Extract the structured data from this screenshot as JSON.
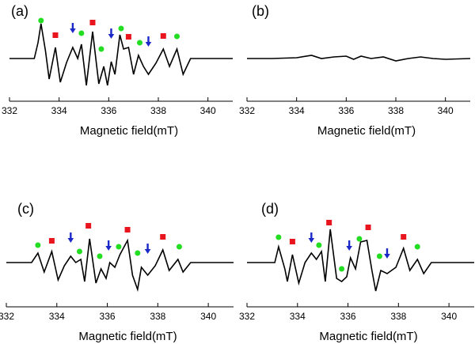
{
  "chart_data": [
    {
      "type": "line",
      "panel_label": "(a)",
      "xlabel": "Magnetic field(mT)",
      "color": "#000000",
      "xlim": [
        332,
        341
      ],
      "xticks": [
        332,
        334,
        336,
        338,
        340
      ],
      "ylim": [
        -54,
        60
      ],
      "x": [
        332.0,
        333.0,
        333.15,
        333.27,
        333.45,
        333.6,
        333.85,
        334.05,
        334.3,
        334.55,
        334.75,
        334.9,
        335.1,
        335.35,
        335.6,
        335.8,
        335.95,
        336.1,
        336.25,
        336.45,
        336.6,
        336.8,
        337.0,
        337.2,
        337.4,
        337.6,
        337.9,
        338.2,
        338.45,
        338.75,
        339.0,
        339.3,
        341.0
      ],
      "values": [
        0,
        0,
        20,
        44,
        10,
        -26,
        14,
        -30,
        -5,
        14,
        0,
        18,
        -34,
        34,
        -32,
        -10,
        -34,
        -4,
        -20,
        30,
        12,
        14,
        -20,
        4,
        -10,
        -20,
        -6,
        12,
        -10,
        12,
        -20,
        0,
        0
      ],
      "markers": [
        {
          "shape": "circle",
          "color": "#22dd22",
          "x": [
            333.27,
            334.9,
            335.7,
            336.5,
            337.25,
            338.75
          ],
          "values": [
            42,
            26,
            6,
            32,
            14,
            22
          ]
        },
        {
          "shape": "square",
          "color": "#e8141e",
          "x": [
            333.85,
            335.35,
            336.8,
            338.2
          ],
          "values": [
            23,
            39,
            21,
            22
          ]
        },
        {
          "shape": "arrow",
          "color": "#1a28c8",
          "x": [
            334.55,
            336.1,
            337.6
          ],
          "values": [
            27,
            20,
            10
          ]
        }
      ]
    },
    {
      "type": "line",
      "panel_label": "(b)",
      "xlabel": "Magnetic field(mT)",
      "color": "#000000",
      "xlim": [
        332,
        341
      ],
      "xticks": [
        332,
        334,
        336,
        338,
        340
      ],
      "ylim": [
        -54,
        60
      ],
      "x": [
        332.0,
        333.0,
        334.0,
        334.6,
        335.0,
        335.5,
        336.0,
        336.3,
        336.6,
        337.0,
        337.5,
        338.0,
        338.5,
        339.0,
        339.5,
        340.0,
        341.0
      ],
      "values": [
        0,
        0,
        1,
        4,
        0,
        2,
        3,
        -1,
        3,
        0,
        2,
        -3,
        0,
        2,
        0,
        -1,
        0
      ],
      "markers": []
    },
    {
      "type": "line",
      "panel_label": "(c)",
      "xlabel": "Magnetic field(mT)",
      "color": "#000000",
      "xlim": [
        332,
        341
      ],
      "xticks": [
        332,
        334,
        336,
        338,
        340
      ],
      "ylim": [
        -56,
        60
      ],
      "x": [
        332.0,
        333.0,
        333.25,
        333.5,
        333.8,
        334.05,
        334.3,
        334.55,
        334.75,
        334.95,
        335.1,
        335.3,
        335.55,
        335.75,
        335.95,
        336.1,
        336.3,
        336.5,
        336.8,
        337.0,
        337.2,
        337.35,
        337.6,
        337.9,
        338.2,
        338.45,
        338.8,
        339.0,
        339.3,
        341.0
      ],
      "values": [
        0,
        0,
        12,
        -12,
        14,
        -22,
        -4,
        8,
        0,
        4,
        -24,
        30,
        -26,
        -8,
        -20,
        0,
        -6,
        10,
        28,
        -16,
        -34,
        -6,
        -16,
        -4,
        16,
        -10,
        4,
        -12,
        0,
        0
      ],
      "markers": [
        {
          "shape": "circle",
          "color": "#22dd22",
          "x": [
            333.25,
            334.9,
            335.7,
            336.45,
            337.2,
            338.85
          ],
          "values": [
            16,
            8,
            2,
            14,
            6,
            14
          ]
        },
        {
          "shape": "square",
          "color": "#e8141e",
          "x": [
            333.8,
            335.25,
            336.8,
            338.2
          ],
          "values": [
            21,
            40,
            35,
            26
          ]
        },
        {
          "shape": "arrow",
          "color": "#1a28c8",
          "x": [
            334.55,
            336.05,
            337.6
          ],
          "values": [
            20,
            10,
            6
          ]
        }
      ]
    },
    {
      "type": "line",
      "panel_label": "(d)",
      "xlabel": "Magnetic field(mT)",
      "color": "#000000",
      "xlim": [
        332,
        341
      ],
      "xticks": [
        332,
        334,
        336,
        338,
        340
      ],
      "ylim": [
        -56,
        60
      ],
      "x": [
        332.0,
        333.1,
        333.25,
        333.5,
        333.6,
        333.8,
        334.05,
        334.3,
        334.55,
        334.75,
        334.95,
        335.1,
        335.3,
        335.55,
        335.75,
        335.95,
        336.1,
        336.3,
        336.5,
        336.75,
        336.95,
        337.1,
        337.3,
        337.55,
        337.9,
        338.2,
        338.45,
        338.75,
        339.0,
        339.3,
        341.0
      ],
      "values": [
        0,
        0,
        20,
        -8,
        -24,
        10,
        -26,
        0,
        12,
        4,
        14,
        -24,
        42,
        -20,
        -24,
        -18,
        6,
        -8,
        26,
        28,
        -10,
        -36,
        -10,
        -14,
        -6,
        18,
        -10,
        4,
        -14,
        0,
        0
      ],
      "markers": [
        {
          "shape": "circle",
          "color": "#22dd22",
          "x": [
            333.25,
            334.85,
            335.75,
            336.45,
            337.25,
            338.75
          ],
          "values": [
            26,
            16,
            -14,
            24,
            2,
            14
          ]
        },
        {
          "shape": "square",
          "color": "#e8141e",
          "x": [
            333.8,
            335.25,
            336.8,
            338.2
          ],
          "values": [
            20,
            44,
            38,
            26
          ]
        },
        {
          "shape": "arrow",
          "color": "#1a28c8",
          "x": [
            334.55,
            336.05,
            337.55
          ],
          "values": [
            20,
            10,
            0
          ]
        }
      ]
    }
  ]
}
